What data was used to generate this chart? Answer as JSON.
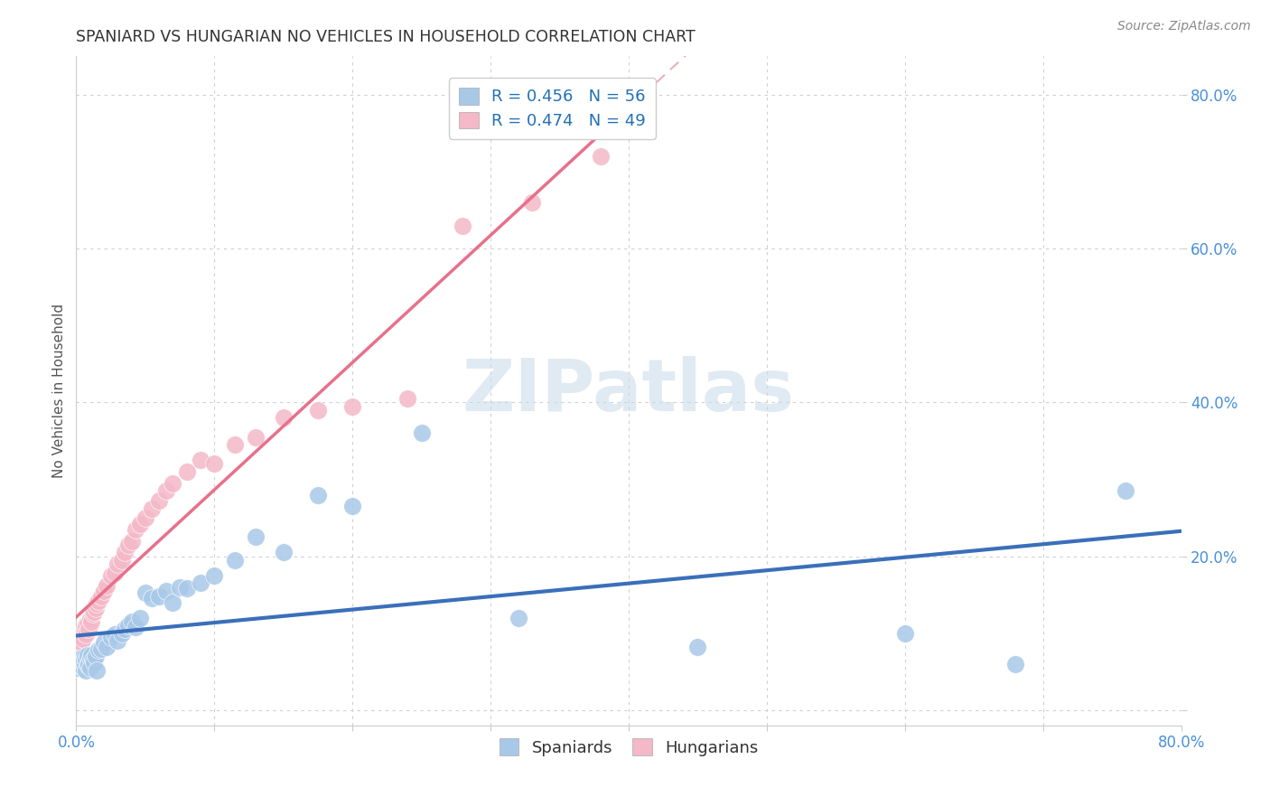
{
  "title": "SPANIARD VS HUNGARIAN NO VEHICLES IN HOUSEHOLD CORRELATION CHART",
  "source": "Source: ZipAtlas.com",
  "ylabel": "No Vehicles in Household",
  "spaniard_color": "#a8c8e8",
  "hungarian_color": "#f4b8c8",
  "spaniard_line_color": "#3a6fba",
  "hungarian_line_color": "#e8708a",
  "hungarian_line_dashed_color": "#e8b0b8",
  "spaniard_R": 0.456,
  "spaniard_N": 56,
  "hungarian_R": 0.474,
  "hungarian_N": 49,
  "watermark_text": "ZIPatlas",
  "watermark_color": "#c8daea",
  "xlim": [
    0.0,
    0.8
  ],
  "ylim": [
    -0.02,
    0.85
  ],
  "ytick_values": [
    0.0,
    0.2,
    0.4,
    0.6,
    0.8
  ],
  "ytick_labels": [
    "0.0%",
    "20.0%",
    "40.0%",
    "60.0%",
    "80.0%"
  ],
  "xtick_values": [
    0.0,
    0.1,
    0.2,
    0.3,
    0.4,
    0.5,
    0.6,
    0.7,
    0.8
  ],
  "background_color": "#ffffff",
  "grid_color": "#d0d0d0",
  "spaniard_x": [
    0.001,
    0.002,
    0.002,
    0.003,
    0.003,
    0.004,
    0.004,
    0.005,
    0.005,
    0.006,
    0.006,
    0.007,
    0.007,
    0.008,
    0.008,
    0.009,
    0.01,
    0.01,
    0.011,
    0.012,
    0.013,
    0.014,
    0.015,
    0.016,
    0.018,
    0.02,
    0.022,
    0.025,
    0.028,
    0.03,
    0.033,
    0.035,
    0.038,
    0.04,
    0.043,
    0.046,
    0.05,
    0.055,
    0.06,
    0.065,
    0.07,
    0.075,
    0.08,
    0.09,
    0.1,
    0.115,
    0.13,
    0.15,
    0.175,
    0.2,
    0.25,
    0.32,
    0.45,
    0.6,
    0.68,
    0.76
  ],
  "spaniard_y": [
    0.055,
    0.06,
    0.058,
    0.062,
    0.065,
    0.06,
    0.068,
    0.055,
    0.063,
    0.07,
    0.058,
    0.052,
    0.065,
    0.058,
    0.072,
    0.06,
    0.068,
    0.055,
    0.072,
    0.065,
    0.062,
    0.07,
    0.052,
    0.078,
    0.08,
    0.088,
    0.082,
    0.095,
    0.098,
    0.09,
    0.1,
    0.105,
    0.11,
    0.115,
    0.108,
    0.12,
    0.152,
    0.145,
    0.148,
    0.155,
    0.14,
    0.16,
    0.158,
    0.165,
    0.175,
    0.195,
    0.225,
    0.205,
    0.28,
    0.265,
    0.36,
    0.12,
    0.082,
    0.1,
    0.06,
    0.285
  ],
  "hungarian_x": [
    0.001,
    0.002,
    0.003,
    0.003,
    0.004,
    0.004,
    0.005,
    0.005,
    0.006,
    0.007,
    0.007,
    0.008,
    0.009,
    0.01,
    0.011,
    0.012,
    0.013,
    0.014,
    0.015,
    0.016,
    0.018,
    0.02,
    0.022,
    0.025,
    0.028,
    0.03,
    0.033,
    0.035,
    0.038,
    0.04,
    0.043,
    0.046,
    0.05,
    0.055,
    0.06,
    0.065,
    0.07,
    0.08,
    0.09,
    0.1,
    0.115,
    0.13,
    0.15,
    0.175,
    0.2,
    0.24,
    0.28,
    0.33,
    0.38
  ],
  "hungarian_y": [
    0.078,
    0.085,
    0.09,
    0.082,
    0.095,
    0.088,
    0.1,
    0.092,
    0.105,
    0.11,
    0.098,
    0.112,
    0.105,
    0.118,
    0.115,
    0.125,
    0.128,
    0.132,
    0.138,
    0.142,
    0.148,
    0.155,
    0.162,
    0.175,
    0.178,
    0.19,
    0.195,
    0.205,
    0.215,
    0.22,
    0.235,
    0.242,
    0.25,
    0.262,
    0.272,
    0.285,
    0.295,
    0.31,
    0.325,
    0.32,
    0.345,
    0.355,
    0.38,
    0.39,
    0.395,
    0.405,
    0.63,
    0.66,
    0.72
  ]
}
